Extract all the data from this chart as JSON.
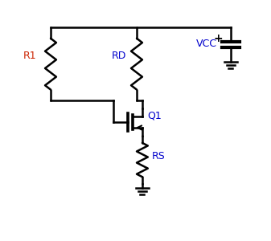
{
  "bg_color": "#ffffff",
  "line_color": "#000000",
  "label_color_red": "#cc2200",
  "label_color_blue": "#0000cc",
  "R1_label": "R1",
  "RD_label": "RD",
  "RS_label": "RS",
  "VCC_label": "VCC",
  "Q1_label": "Q1",
  "figsize": [
    3.37,
    3.0
  ],
  "dpi": 100
}
